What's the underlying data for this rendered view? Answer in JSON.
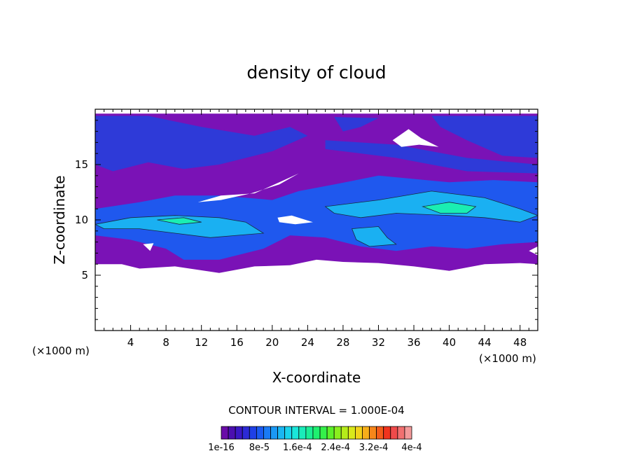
{
  "chart_data": {
    "type": "contour",
    "title": "density of cloud",
    "xlabel": "X-coordinate",
    "ylabel": "Z-coordinate",
    "x_unit": "(×1000 m)",
    "y_unit": "(×1000 m)",
    "xlim": [
      0,
      50
    ],
    "ylim": [
      0,
      20
    ],
    "x_ticks": [
      4,
      8,
      12,
      16,
      20,
      24,
      28,
      32,
      36,
      40,
      44,
      48
    ],
    "y_ticks": [
      5,
      10,
      15
    ],
    "contour_interval_text": "CONTOUR INTERVAL = 1.000E-04",
    "colorbar": {
      "labels": [
        "1e-16",
        "8e-5",
        "1.6e-4",
        "2.4e-4",
        "3.2e-4",
        "4e-4"
      ],
      "colors": [
        "#6a0ca8",
        "#4b0fb0",
        "#3a18c4",
        "#2c2ad6",
        "#1f40e6",
        "#1a5af0",
        "#1a7af5",
        "#1a98f5",
        "#1ab6f2",
        "#1ad2ec",
        "#1ae6da",
        "#1aecba",
        "#1aee96",
        "#1ef070",
        "#34f04a",
        "#5cf02a",
        "#8aef1e",
        "#b6ec1a",
        "#dae81a",
        "#f2d21a",
        "#f6ae1a",
        "#f6861a",
        "#f45c1a",
        "#f0341e",
        "#f04a4a",
        "#f27070",
        "#f49a9a"
      ]
    },
    "fields": [
      {
        "level": "low",
        "color": "#7a12b6",
        "polygon": [
          [
            0,
            6
          ],
          [
            3,
            6
          ],
          [
            5,
            5.6
          ],
          [
            9,
            5.8
          ],
          [
            14,
            5.2
          ],
          [
            18,
            5.8
          ],
          [
            22,
            5.9
          ],
          [
            25,
            6.4
          ],
          [
            28,
            6.2
          ],
          [
            32,
            6.1
          ],
          [
            36,
            5.8
          ],
          [
            40,
            5.4
          ],
          [
            44,
            6
          ],
          [
            48,
            6.1
          ],
          [
            50,
            6
          ],
          [
            50,
            19.6
          ],
          [
            0,
            19.6
          ]
        ]
      },
      {
        "level": "mid",
        "color": "#2e3ad8",
        "polygon": [
          [
            0,
            19.4
          ],
          [
            6,
            19.4
          ],
          [
            12,
            18.4
          ],
          [
            18,
            17.6
          ],
          [
            22,
            18.4
          ],
          [
            24,
            17.6
          ],
          [
            20,
            16.2
          ],
          [
            14,
            15
          ],
          [
            10,
            14.6
          ],
          [
            6,
            15.2
          ],
          [
            2,
            14.4
          ],
          [
            0,
            15
          ]
        ]
      },
      {
        "level": "mid",
        "color": "#2e3ad8",
        "polygon": [
          [
            27,
            19.3
          ],
          [
            32,
            19.2
          ],
          [
            30,
            18.4
          ],
          [
            28,
            18
          ]
        ]
      },
      {
        "level": "mid",
        "color": "#2e3ad8",
        "polygon": [
          [
            38,
            19.4
          ],
          [
            50,
            19.4
          ],
          [
            50,
            15.6
          ],
          [
            46,
            15.8
          ],
          [
            42,
            17.2
          ],
          [
            39,
            18.4
          ]
        ]
      },
      {
        "level": "mid",
        "color": "#2e3ad8",
        "polygon": [
          [
            26,
            17.2
          ],
          [
            34,
            16.8
          ],
          [
            42,
            15.6
          ],
          [
            50,
            15
          ],
          [
            50,
            14.2
          ],
          [
            42,
            14.4
          ],
          [
            34,
            15.6
          ],
          [
            26,
            16.4
          ]
        ]
      },
      {
        "level": "mid",
        "color": "#1f58ee",
        "polygon": [
          [
            0,
            11
          ],
          [
            5,
            11.6
          ],
          [
            9,
            12.2
          ],
          [
            14,
            12.2
          ],
          [
            20,
            11.8
          ],
          [
            23,
            12.6
          ],
          [
            27,
            13.2
          ],
          [
            32,
            14
          ],
          [
            40,
            13.4
          ],
          [
            45,
            13.6
          ],
          [
            50,
            13.4
          ],
          [
            50,
            8
          ],
          [
            46,
            7.8
          ],
          [
            42,
            7.4
          ],
          [
            38,
            7.6
          ],
          [
            34,
            7.2
          ],
          [
            30,
            7.6
          ],
          [
            26,
            8.4
          ],
          [
            22,
            8.6
          ],
          [
            19,
            7.4
          ],
          [
            14,
            6.4
          ],
          [
            10,
            6.4
          ],
          [
            8,
            7.4
          ],
          [
            4,
            8.2
          ],
          [
            0,
            8.6
          ]
        ]
      },
      {
        "level": "high",
        "color": "#1ab0f2",
        "polygon": [
          [
            0,
            9.6
          ],
          [
            4,
            10.2
          ],
          [
            9,
            10.4
          ],
          [
            14,
            10.2
          ],
          [
            17,
            9.8
          ],
          [
            19,
            8.8
          ],
          [
            16,
            8.6
          ],
          [
            13,
            8.4
          ],
          [
            9,
            8.8
          ],
          [
            5,
            9.2
          ],
          [
            1,
            9.2
          ]
        ]
      },
      {
        "level": "high",
        "color": "#1ab0f2",
        "polygon": [
          [
            26,
            11.2
          ],
          [
            32,
            11.8
          ],
          [
            38,
            12.6
          ],
          [
            44,
            12
          ],
          [
            48,
            11
          ],
          [
            50,
            10.4
          ],
          [
            48,
            9.8
          ],
          [
            44,
            10.2
          ],
          [
            40,
            10.4
          ],
          [
            34,
            10.6
          ],
          [
            30,
            10.2
          ],
          [
            27,
            10.6
          ]
        ]
      },
      {
        "level": "high",
        "color": "#1ab0f2",
        "polygon": [
          [
            29,
            9.2
          ],
          [
            32,
            9.4
          ],
          [
            33,
            8.4
          ],
          [
            34,
            7.8
          ],
          [
            31,
            7.6
          ],
          [
            29.5,
            8.2
          ]
        ]
      },
      {
        "level": "peak",
        "color": "#1aeeb2",
        "polygon": [
          [
            37,
            11.2
          ],
          [
            40,
            11.6
          ],
          [
            43,
            11.2
          ],
          [
            42,
            10.6
          ],
          [
            39,
            10.6
          ]
        ]
      },
      {
        "level": "peak",
        "color": "#1aeeb2",
        "polygon": [
          [
            7,
            10
          ],
          [
            10,
            10.2
          ],
          [
            12,
            9.8
          ],
          [
            9.5,
            9.6
          ]
        ]
      },
      {
        "level": "gap",
        "color": "#ffffff",
        "polygon": [
          [
            33.6,
            17.2
          ],
          [
            35.4,
            18.2
          ],
          [
            36.8,
            17.4
          ],
          [
            38.8,
            16.6
          ],
          [
            36.6,
            16.8
          ],
          [
            34.6,
            16.6
          ]
        ]
      },
      {
        "level": "gap",
        "color": "#ffffff",
        "polygon": [
          [
            11.6,
            11.6
          ],
          [
            14.2,
            12.2
          ],
          [
            18,
            12.4
          ],
          [
            20.8,
            13.4
          ],
          [
            23,
            14.2
          ],
          [
            20.8,
            13.2
          ],
          [
            17.6,
            12.4
          ],
          [
            14.2,
            11.8
          ]
        ]
      },
      {
        "level": "gap",
        "color": "#ffffff",
        "polygon": [
          [
            20.6,
            10.2
          ],
          [
            22.2,
            10.4
          ],
          [
            24.6,
            9.8
          ],
          [
            22.6,
            9.6
          ],
          [
            20.8,
            9.8
          ]
        ]
      },
      {
        "level": "gap",
        "color": "#ffffff",
        "polygon": [
          [
            5.4,
            7.8
          ],
          [
            6.6,
            7.9
          ],
          [
            6.2,
            7.2
          ]
        ]
      },
      {
        "level": "gap",
        "color": "#ffffff",
        "polygon": [
          [
            49,
            7.2
          ],
          [
            50,
            7.6
          ],
          [
            50,
            6.8
          ]
        ]
      }
    ]
  }
}
